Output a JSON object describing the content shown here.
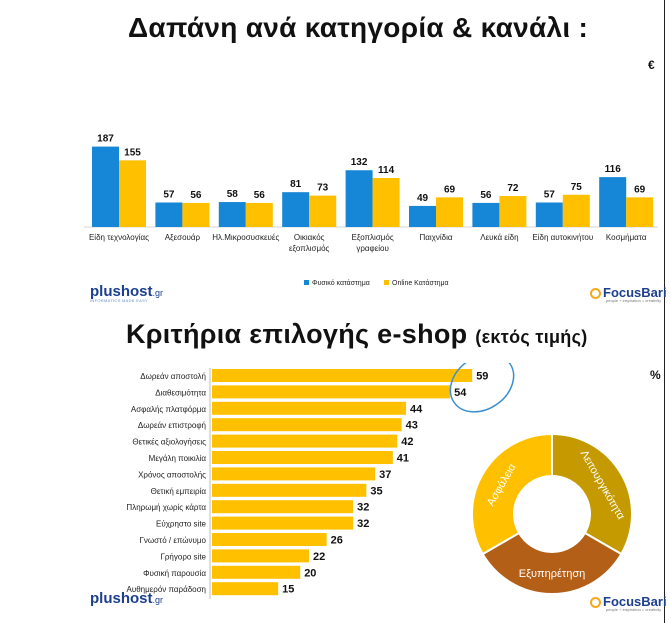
{
  "top": {
    "title": "Δαπάνη ανά κατηγορία & κανάλι :",
    "unit": "€",
    "logo_plus": "plushost",
    "logo_plus_suffix": ".gr",
    "logo_plus_tag": "INFORMATICS MADE EASY",
    "logo_focus": "FocusBari",
    "logo_focus_tag": "people + inspiration = creativity"
  },
  "bottom": {
    "title": "Κριτήρια επιλογής e-shop",
    "title_suffix": "(εκτός τιμής)",
    "unit": "%",
    "logo_plus": "plushost",
    "logo_plus_suffix": ".gr",
    "logo_focus": "FocusBari",
    "logo_focus_tag": "people + inspiration = creativity"
  },
  "colors": {
    "blue": "#1686d6",
    "yellow": "#ffc000",
    "gold": "#c49a00",
    "rust": "#b45f17",
    "circle": "#3a8fd0"
  },
  "chart_data": [
    {
      "type": "bar",
      "title": "Δαπάνη ανά κατηγορία & κανάλι :",
      "categories": [
        [
          "Είδη τεχνολογίας"
        ],
        [
          "Αξεσουάρ"
        ],
        [
          "Ηλ.Μικροσυσκευές"
        ],
        [
          "Οικιακός",
          "εξοπλισμός"
        ],
        [
          "Εξοπλισμός",
          "γραφείου"
        ],
        [
          "Παιχνίδια"
        ],
        [
          "Λευκά είδη"
        ],
        [
          "Είδη αυτοκινήτου"
        ],
        [
          "Κοσμήματα"
        ]
      ],
      "series": [
        {
          "name": "Φυσικό κατάστημα",
          "values": [
            187,
            57,
            58,
            81,
            132,
            49,
            56,
            57,
            116
          ]
        },
        {
          "name": "Online Κατάστημα",
          "values": [
            155,
            56,
            56,
            73,
            114,
            69,
            72,
            75,
            69
          ]
        }
      ],
      "legend_position": "bottom",
      "grid": false
    },
    {
      "type": "bar",
      "orientation": "horizontal",
      "title": "Κριτήρια επιλογής e-shop (εκτός τιμής)",
      "categories": [
        "Δωρεάν αποστολή",
        "Διαθεσιμότητα",
        "Ασφαλής πλατφόρμα",
        "Δωρεάν επιστροφή",
        "Θετικές αξιολογήσεις",
        "Μεγάλη ποικιλία",
        "Χρόνος αποστολής",
        "Θετική εμπειρία",
        "Πληρωμή χωρίς κάρτα",
        "Εύχρηστο site",
        "Γνωστό / επώνυμο",
        "Γρήγορο site",
        "Φυσική παρουσία",
        "Αυθημερόν παράδοση"
      ],
      "values": [
        59,
        54,
        44,
        43,
        42,
        41,
        37,
        35,
        32,
        32,
        26,
        22,
        20,
        15
      ],
      "highlighted": [
        59,
        54
      ],
      "grid": false
    },
    {
      "type": "pie",
      "style": "donut",
      "labels": [
        "Λειτουργικότητα",
        "Εξυπηρέτηση",
        "Ασφάλεια"
      ],
      "values": [
        1,
        1,
        1
      ]
    }
  ]
}
